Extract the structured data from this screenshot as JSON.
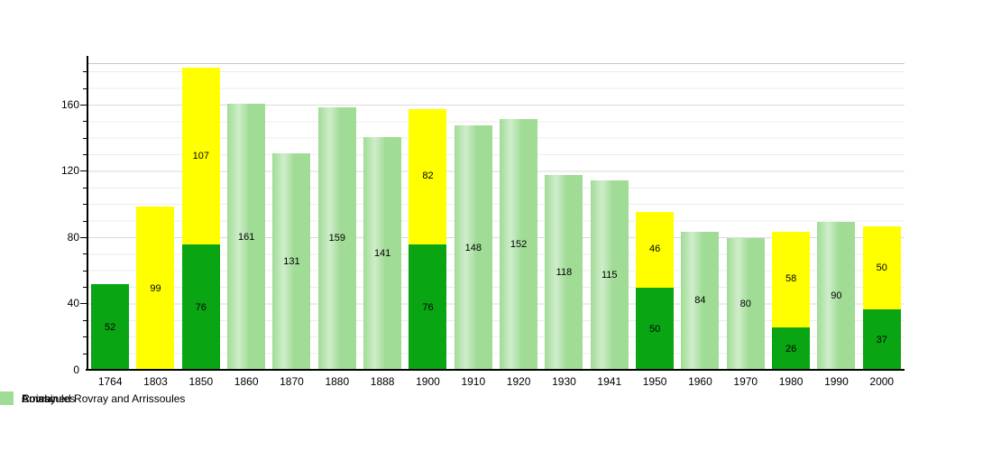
{
  "chart_data": {
    "type": "bar",
    "stacked": true,
    "title": "",
    "categories": [
      "1764",
      "1803",
      "1850",
      "1860",
      "1870",
      "1880",
      "1888",
      "1900",
      "1910",
      "1920",
      "1930",
      "1941",
      "1950",
      "1960",
      "1970",
      "1980",
      "1990",
      "2000"
    ],
    "series": [
      {
        "name": "Arrissoules",
        "color": "#0aa513",
        "values": [
          52,
          null,
          76,
          null,
          null,
          null,
          null,
          76,
          null,
          null,
          null,
          null,
          50,
          null,
          null,
          26,
          null,
          37
        ]
      },
      {
        "name": "Rovray",
        "color": "#ffff00",
        "values": [
          null,
          99,
          107,
          null,
          null,
          null,
          null,
          82,
          null,
          null,
          null,
          null,
          46,
          null,
          null,
          58,
          null,
          50
        ]
      },
      {
        "name": "Combined Rovray and Arrissoules",
        "color": "#a0dc96",
        "values": [
          null,
          null,
          null,
          161,
          131,
          159,
          141,
          null,
          148,
          152,
          118,
          115,
          null,
          84,
          80,
          null,
          90,
          null
        ]
      }
    ],
    "ylim": [
      0,
      185
    ],
    "yticks": [
      0,
      40,
      80,
      120,
      160
    ],
    "minor_grid_step": 10,
    "major_grid_step": 40,
    "grid": "horizontal",
    "bar_value_labels": true,
    "legend_position": "bottom",
    "axis_color": "#000000",
    "minor_grid_color": "#ececec",
    "major_grid_color": "#d9d9d9"
  }
}
